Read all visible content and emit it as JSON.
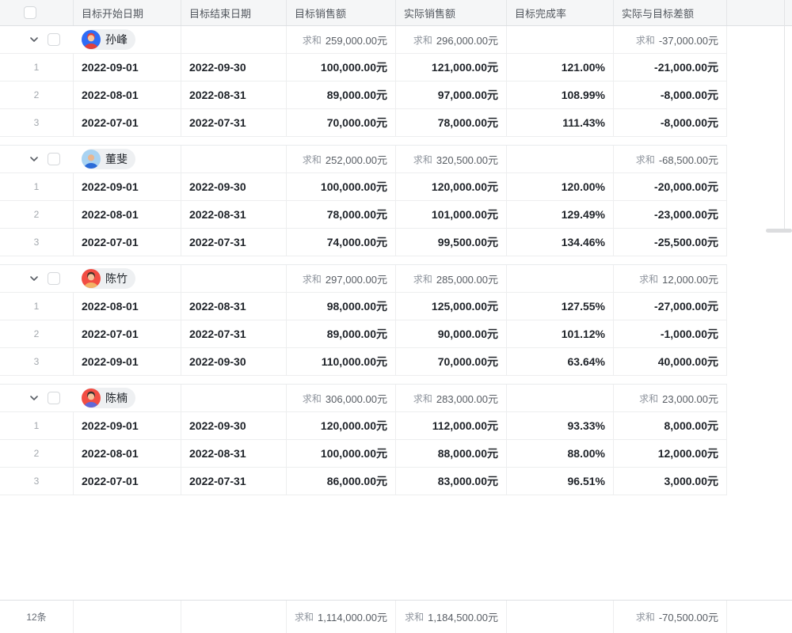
{
  "sum_label": "求和",
  "columns": [
    {
      "label": "目标开始日期"
    },
    {
      "label": "目标结束日期"
    },
    {
      "label": "目标销售额"
    },
    {
      "label": "实际销售额"
    },
    {
      "label": "目标完成率"
    },
    {
      "label": "实际与目标差额"
    }
  ],
  "groups": [
    {
      "name": "孙峰",
      "avatar": {
        "bg": "#2f6cf6",
        "hair": "#e0403c",
        "skin": "#f8c79e",
        "shirt": "#e0403c",
        "bald": false
      },
      "sums": {
        "target": "259,000.00元",
        "actual": "296,000.00元",
        "diff": "-37,000.00元"
      },
      "rows": [
        {
          "no": "1",
          "start": "2022-09-01",
          "end": "2022-09-30",
          "target": "100,000.00元",
          "actual": "121,000.00元",
          "rate": "121.00%",
          "diff": "-21,000.00元"
        },
        {
          "no": "2",
          "start": "2022-08-01",
          "end": "2022-08-31",
          "target": "89,000.00元",
          "actual": "97,000.00元",
          "rate": "108.99%",
          "diff": "-8,000.00元"
        },
        {
          "no": "3",
          "start": "2022-07-01",
          "end": "2022-07-31",
          "target": "70,000.00元",
          "actual": "78,000.00元",
          "rate": "111.43%",
          "diff": "-8,000.00元"
        }
      ]
    },
    {
      "name": "董斐",
      "avatar": {
        "bg": "#a9d3f2",
        "hair": "#c99271",
        "skin": "#e9b68f",
        "shirt": "#2b6bd8",
        "bald": true
      },
      "sums": {
        "target": "252,000.00元",
        "actual": "320,500.00元",
        "diff": "-68,500.00元"
      },
      "rows": [
        {
          "no": "1",
          "start": "2022-09-01",
          "end": "2022-09-30",
          "target": "100,000.00元",
          "actual": "120,000.00元",
          "rate": "120.00%",
          "diff": "-20,000.00元"
        },
        {
          "no": "2",
          "start": "2022-08-01",
          "end": "2022-08-31",
          "target": "78,000.00元",
          "actual": "101,000.00元",
          "rate": "129.49%",
          "diff": "-23,000.00元"
        },
        {
          "no": "3",
          "start": "2022-07-01",
          "end": "2022-07-31",
          "target": "74,000.00元",
          "actual": "99,500.00元",
          "rate": "134.46%",
          "diff": "-25,500.00元"
        }
      ]
    },
    {
      "name": "陈竹",
      "avatar": {
        "bg": "#f24d43",
        "hair": "#463026",
        "skin": "#f6c09a",
        "shirt": "#f2b266",
        "bald": false
      },
      "sums": {
        "target": "297,000.00元",
        "actual": "285,000.00元",
        "diff": "12,000.00元"
      },
      "rows": [
        {
          "no": "1",
          "start": "2022-08-01",
          "end": "2022-08-31",
          "target": "98,000.00元",
          "actual": "125,000.00元",
          "rate": "127.55%",
          "diff": "-27,000.00元"
        },
        {
          "no": "2",
          "start": "2022-07-01",
          "end": "2022-07-31",
          "target": "89,000.00元",
          "actual": "90,000.00元",
          "rate": "101.12%",
          "diff": "-1,000.00元"
        },
        {
          "no": "3",
          "start": "2022-09-01",
          "end": "2022-09-30",
          "target": "110,000.00元",
          "actual": "70,000.00元",
          "rate": "63.64%",
          "diff": "40,000.00元"
        }
      ]
    },
    {
      "name": "陈楠",
      "avatar": {
        "bg": "#f24d43",
        "hair": "#33302e",
        "skin": "#f6c09a",
        "shirt": "#6168d8",
        "bald": false
      },
      "sums": {
        "target": "306,000.00元",
        "actual": "283,000.00元",
        "diff": "23,000.00元"
      },
      "rows": [
        {
          "no": "1",
          "start": "2022-09-01",
          "end": "2022-09-30",
          "target": "120,000.00元",
          "actual": "112,000.00元",
          "rate": "93.33%",
          "diff": "8,000.00元"
        },
        {
          "no": "2",
          "start": "2022-08-01",
          "end": "2022-08-31",
          "target": "100,000.00元",
          "actual": "88,000.00元",
          "rate": "88.00%",
          "diff": "12,000.00元"
        },
        {
          "no": "3",
          "start": "2022-07-01",
          "end": "2022-07-31",
          "target": "86,000.00元",
          "actual": "83,000.00元",
          "rate": "96.51%",
          "diff": "3,000.00元"
        }
      ]
    }
  ],
  "footer": {
    "count": "12条",
    "target_sum": "1,114,000.00元",
    "actual_sum": "1,184,500.00元",
    "diff_sum": "-70,500.00元"
  }
}
